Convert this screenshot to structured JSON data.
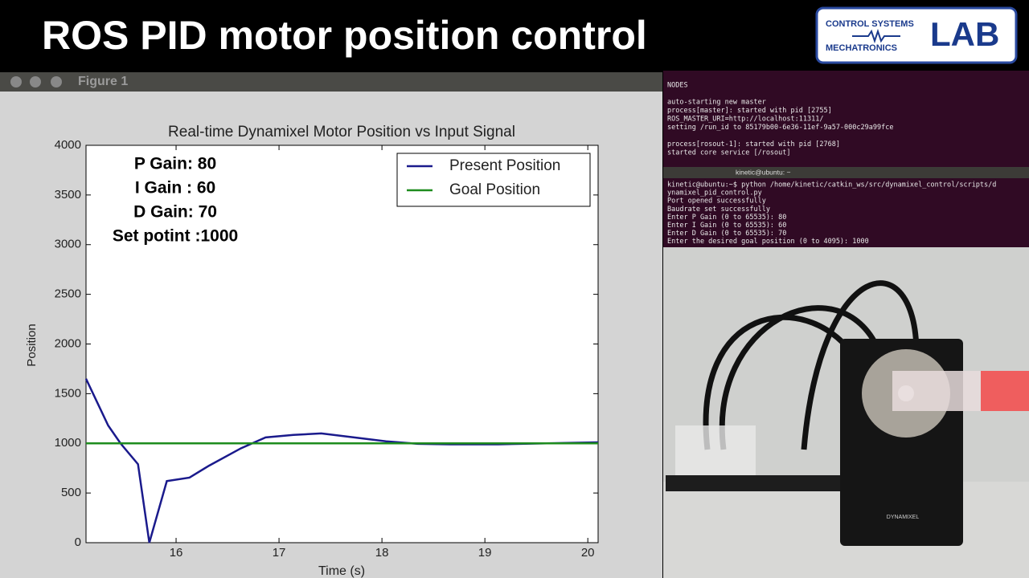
{
  "header": {
    "title": "ROS PID motor position control"
  },
  "logo": {
    "line1": "CONTROL SYSTEMS",
    "line2": "MECHATRONICS",
    "mark": "LAB"
  },
  "window": {
    "title": "Figure 1"
  },
  "gains": [
    "P Gain: 80",
    "I Gain : 60",
    "D Gain: 70",
    "Set potint :1000"
  ],
  "chart_data": {
    "type": "line",
    "title": "Real-time Dynamixel Motor Position vs Input Signal",
    "x_label": "Time (s)",
    "y_label": "Position",
    "xlim": [
      15.125,
      20.1
    ],
    "ylim": [
      0,
      4000
    ],
    "xticks": [
      16,
      17,
      18,
      19,
      20
    ],
    "yticks": [
      0,
      500,
      1000,
      1500,
      2000,
      2500,
      3000,
      3500,
      4000
    ],
    "grid": false,
    "legend": "upper right",
    "series": [
      {
        "name": "Present Position",
        "color": "#1a1a8c",
        "x": [
          15.125,
          15.34,
          15.46,
          15.63,
          15.74,
          15.91,
          16.13,
          16.32,
          16.63,
          16.87,
          17.14,
          17.41,
          17.73,
          18.04,
          18.35,
          18.66,
          19.13,
          19.6,
          20.1
        ],
        "values": [
          1650,
          1180,
          1000,
          790,
          0,
          620,
          655,
          775,
          950,
          1060,
          1085,
          1100,
          1060,
          1020,
          995,
          990,
          990,
          1000,
          1010
        ]
      },
      {
        "name": "Goal Position",
        "color": "#1e8c1e",
        "x": [
          15.125,
          20.1
        ],
        "values": [
          1000,
          1000
        ]
      }
    ]
  },
  "terminal1": {
    "lines": [
      "NODES",
      "auto-starting new master",
      "process[master]: started with pid [2755]",
      "ROS_MASTER_URI=http://localhost:11311/",
      "setting /run_id to 85179b00-6e36-11ef-9a57-000c29a99fce",
      "process[rosout-1]: started with pid [2768]",
      "started core service [/rosout]"
    ]
  },
  "terminal2": {
    "title": "kinetic@ubuntu: ~",
    "lines": [
      "kinetic@ubuntu:~$ python /home/kinetic/catkin_ws/src/dynamixel_control/scripts/d",
      "ynamixel_pid_control.py",
      "Port opened successfully",
      "Baudrate set successfully",
      "Enter P Gain (0 to 65535): 80",
      "Enter I Gain (0 to 65535): 60",
      "Enter D Gain (0 to 65535): 70",
      "Enter the desired goal position (0 to 4095): 1000"
    ]
  },
  "photo": {
    "label": "DYNAMIXEL"
  }
}
